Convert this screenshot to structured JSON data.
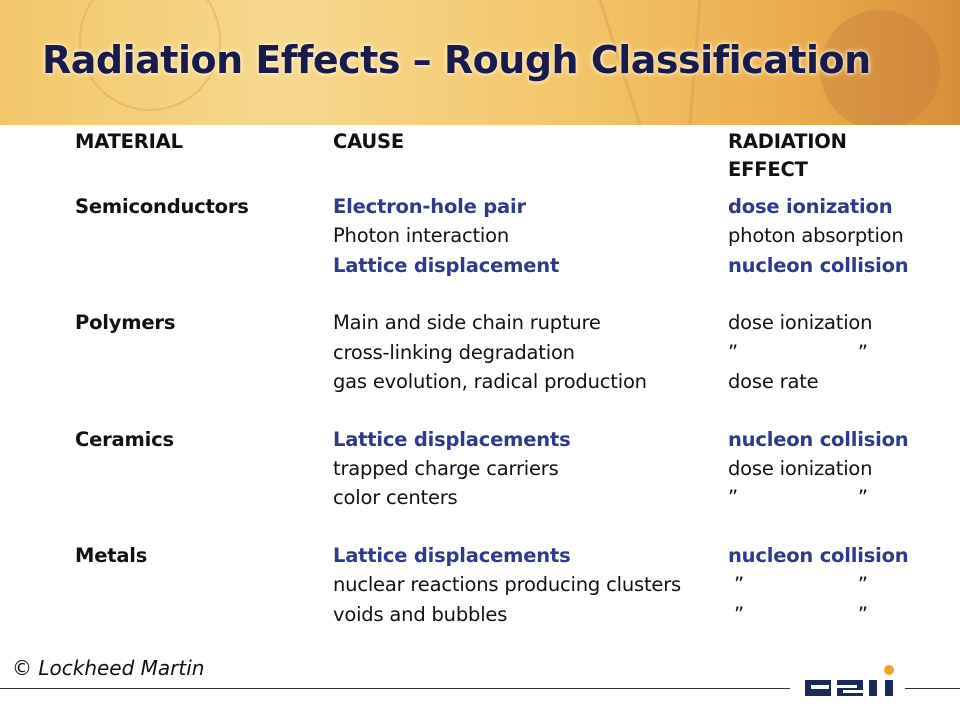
{
  "title": "Radiation Effects – Rough Classification",
  "table": {
    "header": [
      "MATERIAL",
      "CAUSE",
      "RADIATION EFFECT"
    ],
    "groups": [
      {
        "material": "Semiconductors",
        "rows": [
          {
            "cause": "Electron-hole pair",
            "effect": "dose ionization",
            "highlight": true
          },
          {
            "cause": "Photon interaction",
            "effect": "photon absorption",
            "highlight": false
          },
          {
            "cause": "Lattice displacement",
            "effect": "nucleon collision",
            "highlight": true
          }
        ]
      },
      {
        "material": "Polymers",
        "rows": [
          {
            "cause": "Main and side chain rupture",
            "effect": "dose ionization",
            "highlight": false
          },
          {
            "cause": "cross-linking degradation",
            "effect": "”                    ”",
            "highlight": false
          },
          {
            "cause": "gas evolution, radical production",
            "effect": "dose rate",
            "highlight": false
          }
        ]
      },
      {
        "material": "Ceramics",
        "rows": [
          {
            "cause": "Lattice displacements",
            "effect": "nucleon collision",
            "highlight": true
          },
          {
            "cause": "trapped charge carriers",
            "effect": "dose ionization",
            "highlight": false
          },
          {
            "cause": "color centers",
            "effect": "”                    ”",
            "highlight": false
          }
        ]
      },
      {
        "material": "Metals",
        "rows": [
          {
            "cause": "Lattice displacements",
            "effect": "nucleon collision",
            "highlight": true
          },
          {
            "cause": "nuclear reactions producing clusters",
            "effect": " ”                   ”",
            "highlight": false
          },
          {
            "cause": "voids and bubbles",
            "effect": " ”                   ”",
            "highlight": false
          }
        ]
      }
    ]
  },
  "footer": "© Lockheed Martin"
}
